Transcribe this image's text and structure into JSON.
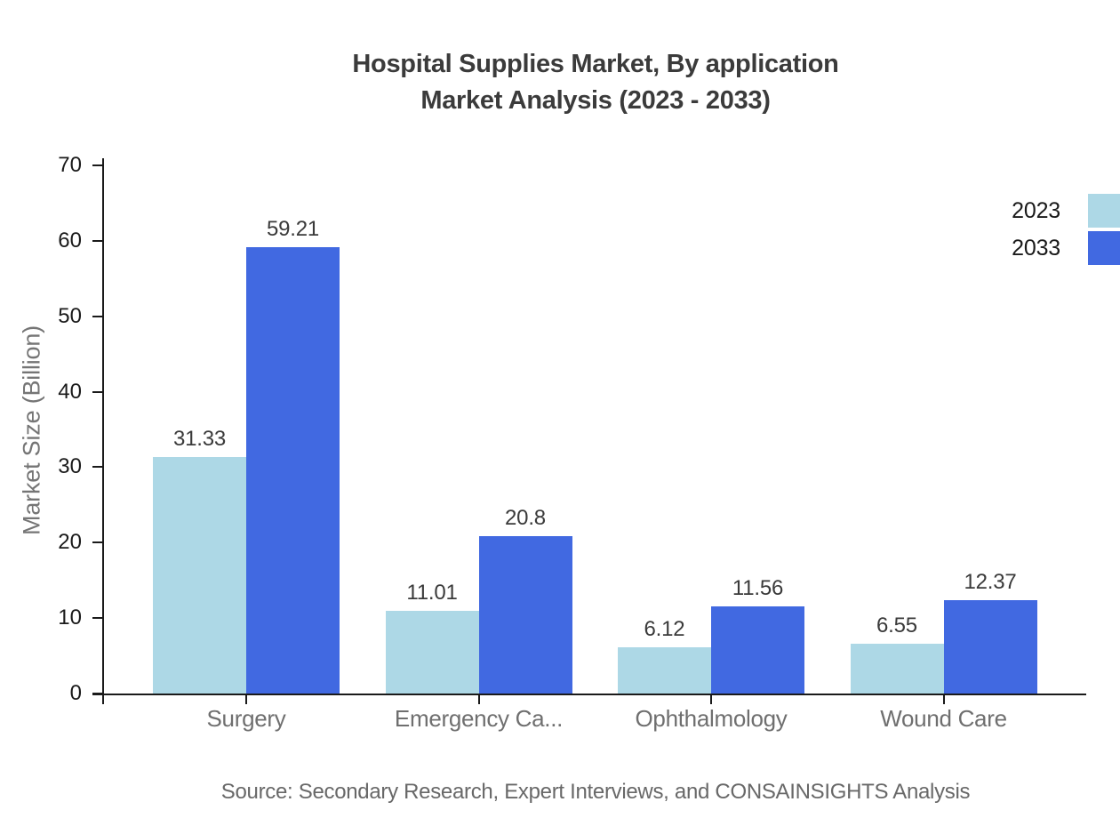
{
  "title": {
    "line1": "Hospital Supplies Market, By application",
    "line2": "Market Analysis (2023 - 2033)"
  },
  "source": "Source: Secondary Research, Expert Interviews, and CONSAINSIGHTS Analysis",
  "chart_data": {
    "type": "bar",
    "categories": [
      "Surgery",
      "Emergency Ca...",
      "Ophthalmology",
      "Wound Care"
    ],
    "series": [
      {
        "name": "2023",
        "color": "#ADD8E6",
        "values": [
          31.33,
          11.01,
          6.12,
          6.55
        ]
      },
      {
        "name": "2033",
        "color": "#4169E1",
        "values": [
          59.21,
          20.8,
          11.56,
          12.37
        ]
      }
    ],
    "value_labels": [
      [
        "31.33",
        "11.01",
        "6.12",
        "6.55"
      ],
      [
        "59.21",
        "20.8",
        "11.56",
        "12.37"
      ]
    ],
    "title": "Hospital Supplies Market, By application Market Analysis (2023 - 2033)",
    "xlabel": "",
    "ylabel": "Market Size (Billion)",
    "ylim": [
      0,
      70
    ],
    "yticks": [
      0,
      10,
      20,
      30,
      40,
      50,
      60,
      70
    ],
    "grid": false,
    "legend_position": "top-right"
  }
}
